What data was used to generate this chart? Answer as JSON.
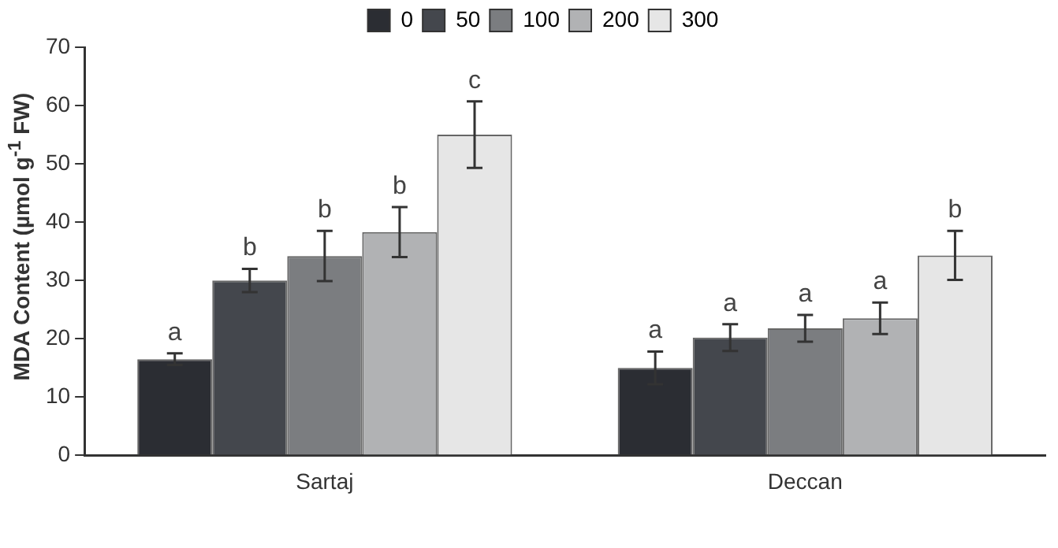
{
  "chart_data": {
    "type": "bar",
    "ylabel": "MDA Content (µmol g$^{-1}$ FW)",
    "categories": [
      "Sartaj",
      "Deccan"
    ],
    "series": [
      {
        "name": "0",
        "color": "#2b2d33",
        "values": [
          16.5,
          15
        ],
        "errors": [
          1,
          2.8
        ],
        "value_labels": [
          "a",
          "a"
        ]
      },
      {
        "name": "50",
        "color": "#44474d",
        "values": [
          30,
          20.2
        ],
        "errors": [
          2,
          2.3
        ],
        "value_labels": [
          "b",
          "a"
        ]
      },
      {
        "name": "100",
        "color": "#7b7d80",
        "values": [
          34.2,
          21.8
        ],
        "errors": [
          4.3,
          2.3
        ],
        "value_labels": [
          "b",
          "a"
        ]
      },
      {
        "name": "200",
        "color": "#b1b2b4",
        "values": [
          38.3,
          23.5
        ],
        "errors": [
          4.3,
          2.7
        ],
        "value_labels": [
          "b",
          "a"
        ]
      },
      {
        "name": "300",
        "color": "#e6e6e6",
        "values": [
          55,
          34.3
        ],
        "errors": [
          5.7,
          4.2
        ],
        "value_labels": [
          "c",
          "b"
        ]
      }
    ],
    "ylim": [
      0,
      70
    ],
    "yticks": [
      0,
      10,
      20,
      30,
      40,
      50,
      60,
      70
    ],
    "grid": false,
    "legend": "top"
  }
}
